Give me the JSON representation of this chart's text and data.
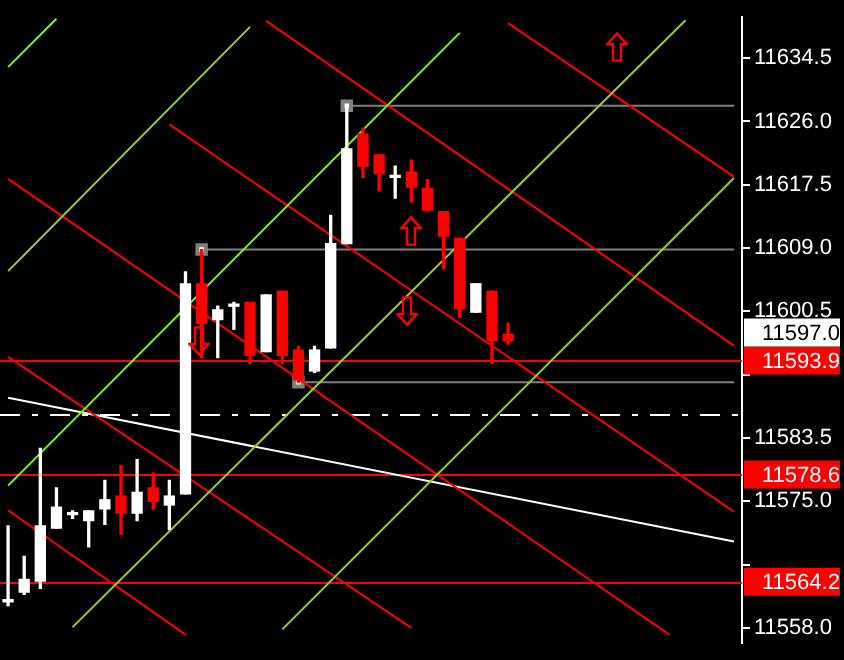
{
  "chart_data": {
    "type": "candlestick",
    "categories": [
      null,
      null,
      null,
      null,
      null,
      null,
      null,
      null,
      null,
      null,
      null,
      null,
      null,
      null,
      null,
      null,
      null,
      null,
      null,
      null,
      null,
      null,
      null,
      null,
      null,
      null,
      null,
      null,
      null,
      null,
      null,
      null,
      null,
      null,
      null,
      null,
      null,
      null,
      null,
      null,
      null,
      null,
      null,
      null,
      null,
      null
    ],
    "ohlc": [
      [
        11561.5,
        11571.7,
        11561.0,
        11561.8
      ],
      [
        11562.8,
        11567.6,
        11562.5,
        11564.5
      ],
      [
        11564.3,
        11582.1,
        11563.3,
        11571.7
      ],
      [
        11571.4,
        11576.8,
        11571.4,
        11574.2
      ],
      [
        11573.2,
        11573.7,
        11572.7,
        11573.4
      ],
      [
        11572.4,
        11573.7,
        11568.9,
        11573.7
      ],
      [
        11574.0,
        11577.8,
        11571.9,
        11575.2
      ],
      [
        11575.7,
        11579.8,
        11570.6,
        11573.4
      ],
      [
        11573.4,
        11580.6,
        11572.4,
        11576.2
      ],
      [
        11576.8,
        11578.8,
        11574.0,
        11575.0
      ],
      [
        11574.5,
        11577.8,
        11571.2,
        11575.7
      ],
      [
        11576.0,
        11605.8,
        11576.0,
        11604.2
      ],
      [
        11604.2,
        11608.8,
        11594.3,
        11598.9
      ],
      [
        11599.4,
        11601.2,
        11594.3,
        11600.7
      ],
      [
        11601.2,
        11601.7,
        11598.1,
        11601.2
      ],
      [
        11601.7,
        11601.7,
        11593.5,
        11594.6
      ],
      [
        11595.1,
        11602.7,
        11595.1,
        11602.7
      ],
      [
        11603.2,
        11603.2,
        11593.5,
        11594.6
      ],
      [
        11595.3,
        11595.8,
        11591.0,
        11591.3
      ],
      [
        11592.5,
        11595.8,
        11592.3,
        11595.3
      ],
      [
        11595.6,
        11613.4,
        11595.6,
        11609.6
      ],
      [
        11609.6,
        11628.1,
        11609.6,
        11622.3
      ],
      [
        11624.3,
        11625.1,
        11618.5,
        11620.0
      ],
      [
        11621.5,
        11621.5,
        11616.7,
        11619.0
      ],
      [
        11618.5,
        11620.0,
        11615.7,
        11618.5
      ],
      [
        11619.2,
        11620.8,
        11615.2,
        11617.2
      ],
      [
        11617.0,
        11618.2,
        11614.1,
        11614.1
      ],
      [
        11613.9,
        11613.9,
        11606.3,
        11610.6
      ],
      [
        11610.3,
        11610.3,
        11599.7,
        11600.9
      ],
      [
        11600.4,
        11604.2,
        11600.4,
        11604.2
      ],
      [
        11603.2,
        11603.2,
        11593.5,
        11596.6
      ],
      [
        11597.4,
        11598.9,
        11596.1,
        11596.6
      ],
      null,
      null,
      null,
      null,
      null,
      null,
      null,
      null,
      null,
      null,
      null,
      null,
      null,
      null
    ],
    "colors": [
      "#ffffff",
      "#ffffff",
      "#ffffff",
      "#ffffff",
      "#ffffff",
      "#ffffff",
      "#ffffff",
      "#ff0000",
      "#ffffff",
      "#ff0000",
      "#ffffff",
      "#ffffff",
      "#ff0000",
      "#ffffff",
      "#ffffff",
      "#ff0000",
      "#ffffff",
      "#ff0000",
      "#ff0000",
      "#ffffff",
      "#ffffff",
      "#ffffff",
      "#ff0000",
      "#ff0000",
      "#ffffff",
      "#ff0000",
      "#ff0000",
      "#ff0000",
      "#ff0000",
      "#ffffff",
      "#ff0000",
      "#ff0000",
      null,
      null,
      null,
      null,
      null,
      null,
      null,
      null,
      null,
      null,
      null,
      null,
      null,
      null
    ],
    "series": [
      {
        "type": "line",
        "color": "#7cfc00",
        "marker": "none",
        "values": [
          11633.3,
          null,
          null,
          11639.8,
          null,
          null,
          null,
          null,
          null,
          null,
          null,
          null,
          null,
          null,
          null,
          null,
          null,
          null,
          null,
          null,
          null,
          null,
          null,
          null,
          null,
          null,
          null,
          null,
          null,
          null,
          null,
          null,
          null,
          null,
          null,
          null,
          null,
          null,
          null,
          null,
          null,
          null,
          null,
          null,
          null,
          null
        ]
      },
      {
        "type": "line",
        "color": "#7cfc00",
        "marker": "none",
        "values": [
          11577.1,
          null,
          null,
          null,
          null,
          null,
          null,
          null,
          null,
          null,
          null,
          null,
          null,
          null,
          null,
          null,
          null,
          null,
          null,
          null,
          null,
          null,
          null,
          null,
          null,
          null,
          null,
          null,
          11637.9,
          null,
          null,
          null,
          null,
          null,
          null,
          null,
          null,
          null,
          null,
          null,
          null,
          null,
          null,
          null,
          null,
          null
        ]
      },
      {
        "type": "line",
        "color": "#9acd32",
        "marker": "none",
        "values": [
          11605.9,
          null,
          null,
          null,
          null,
          null,
          null,
          null,
          null,
          null,
          null,
          null,
          null,
          null,
          null,
          11638.7,
          null,
          null,
          null,
          null,
          null,
          null,
          null,
          null,
          null,
          null,
          null,
          null,
          null,
          null,
          null,
          null,
          null,
          null,
          null,
          null,
          null,
          null,
          null,
          null,
          null,
          null,
          null,
          null,
          null,
          null
        ]
      },
      {
        "type": "line",
        "color": "#9acd32",
        "marker": "none",
        "values": [
          null,
          null,
          null,
          null,
          11558.1,
          null,
          null,
          null,
          null,
          null,
          null,
          null,
          null,
          null,
          null,
          null,
          null,
          null,
          null,
          null,
          null,
          null,
          null,
          null,
          null,
          null,
          null,
          null,
          null,
          null,
          null,
          null,
          null,
          null,
          null,
          null,
          null,
          null,
          null,
          null,
          null,
          null,
          11639.6,
          null,
          null,
          null
        ]
      },
      {
        "type": "line",
        "color": "#9acd32",
        "marker": "none",
        "values": [
          null,
          null,
          null,
          null,
          null,
          null,
          null,
          null,
          null,
          null,
          null,
          null,
          null,
          null,
          null,
          null,
          null,
          11557.8,
          null,
          null,
          null,
          null,
          null,
          null,
          null,
          null,
          null,
          null,
          null,
          null,
          null,
          null,
          null,
          null,
          null,
          null,
          null,
          null,
          null,
          null,
          null,
          null,
          null,
          null,
          null,
          11618.4
        ]
      },
      {
        "type": "line",
        "color": "#ff0000",
        "marker": "none",
        "values": [
          null,
          null,
          null,
          null,
          null,
          null,
          null,
          null,
          null,
          null,
          null,
          null,
          null,
          null,
          null,
          null,
          null,
          null,
          null,
          null,
          null,
          null,
          null,
          null,
          null,
          null,
          null,
          null,
          null,
          null,
          null,
          11639.2,
          null,
          null,
          null,
          null,
          null,
          null,
          null,
          null,
          null,
          null,
          null,
          null,
          null,
          11618.6
        ]
      },
      {
        "type": "line",
        "color": "#ff0000",
        "marker": "none",
        "values": [
          null,
          null,
          null,
          null,
          null,
          null,
          null,
          null,
          null,
          null,
          null,
          null,
          null,
          null,
          null,
          null,
          11639.5,
          null,
          null,
          null,
          null,
          null,
          null,
          null,
          null,
          null,
          null,
          null,
          null,
          null,
          null,
          null,
          null,
          null,
          null,
          null,
          null,
          null,
          null,
          null,
          null,
          null,
          null,
          null,
          null,
          11595.9
        ]
      },
      {
        "type": "line",
        "color": "#ff0000",
        "marker": "none",
        "values": [
          null,
          null,
          null,
          null,
          null,
          null,
          null,
          null,
          null,
          null,
          11625.6,
          null,
          null,
          null,
          null,
          null,
          null,
          null,
          null,
          null,
          null,
          null,
          null,
          null,
          null,
          null,
          null,
          null,
          null,
          null,
          null,
          null,
          null,
          null,
          null,
          null,
          null,
          null,
          null,
          null,
          null,
          null,
          null,
          null,
          null,
          11573.6
        ]
      },
      {
        "type": "line",
        "color": "#ff0000",
        "marker": "none",
        "values": [
          11618.3,
          null,
          null,
          null,
          null,
          null,
          null,
          null,
          null,
          null,
          null,
          null,
          null,
          null,
          null,
          null,
          null,
          null,
          null,
          null,
          null,
          null,
          null,
          null,
          null,
          null,
          null,
          null,
          null,
          null,
          null,
          null,
          null,
          null,
          null,
          null,
          null,
          null,
          null,
          null,
          null,
          11557.1,
          null,
          null,
          null,
          null
        ]
      },
      {
        "type": "line",
        "color": "#ff0000",
        "marker": "none",
        "values": [
          11594.4,
          null,
          null,
          null,
          null,
          null,
          null,
          null,
          null,
          null,
          null,
          null,
          null,
          null,
          null,
          null,
          null,
          null,
          null,
          null,
          null,
          null,
          null,
          null,
          null,
          11558.0,
          null,
          null,
          null,
          null,
          null,
          null,
          null,
          null,
          null,
          null,
          null,
          null,
          null,
          null,
          null,
          null,
          null,
          null,
          null,
          null
        ]
      },
      {
        "type": "line",
        "color": "#ff0000",
        "marker": "none",
        "values": [
          11573.8,
          null,
          null,
          null,
          null,
          null,
          null,
          null,
          null,
          null,
          null,
          11557.1,
          null,
          null,
          null,
          null,
          null,
          null,
          null,
          null,
          null,
          null,
          null,
          null,
          null,
          null,
          null,
          null,
          null,
          null,
          null,
          null,
          null,
          null,
          null,
          null,
          null,
          null,
          null,
          null,
          null,
          null,
          null,
          null,
          null,
          null
        ]
      },
      {
        "type": "line",
        "color": "#ffffff",
        "marker": "none",
        "values": [
          11588.9,
          null,
          null,
          null,
          null,
          null,
          null,
          null,
          null,
          null,
          null,
          null,
          null,
          null,
          null,
          null,
          null,
          null,
          null,
          null,
          null,
          null,
          null,
          null,
          null,
          null,
          null,
          null,
          null,
          null,
          null,
          null,
          null,
          null,
          null,
          null,
          null,
          null,
          null,
          null,
          null,
          null,
          null,
          null,
          null,
          11569.6
        ]
      },
      {
        "type": "line",
        "color": "#808080",
        "marker": "square",
        "values": [
          null,
          null,
          null,
          null,
          null,
          null,
          null,
          null,
          null,
          null,
          null,
          null,
          null,
          null,
          null,
          null,
          null,
          null,
          null,
          null,
          null,
          11628.1,
          null,
          null,
          null,
          null,
          null,
          null,
          null,
          null,
          null,
          null,
          null,
          null,
          null,
          null,
          null,
          null,
          null,
          null,
          null,
          null,
          null,
          null,
          null,
          11628.1
        ]
      },
      {
        "type": "line",
        "color": "#808080",
        "marker": "square",
        "values": [
          null,
          null,
          null,
          null,
          null,
          null,
          null,
          null,
          null,
          null,
          null,
          null,
          11608.8,
          null,
          null,
          null,
          null,
          null,
          null,
          null,
          null,
          null,
          null,
          null,
          null,
          null,
          null,
          null,
          null,
          null,
          null,
          null,
          null,
          null,
          null,
          null,
          null,
          null,
          null,
          null,
          null,
          null,
          null,
          null,
          null,
          11608.8
        ]
      },
      {
        "type": "line",
        "color": "#808080",
        "marker": "square",
        "values": [
          null,
          null,
          null,
          null,
          null,
          null,
          null,
          null,
          null,
          null,
          null,
          null,
          null,
          null,
          null,
          null,
          null,
          null,
          11591.0,
          null,
          null,
          null,
          null,
          null,
          null,
          null,
          null,
          null,
          null,
          null,
          null,
          null,
          null,
          null,
          null,
          null,
          null,
          null,
          null,
          null,
          null,
          null,
          null,
          null,
          null,
          11591.0
        ]
      }
    ],
    "ylim": [
      11556,
      11640
    ],
    "yticks": [
      {
        "value": 11558,
        "label": "11558.0"
      },
      {
        "value": 11566.5,
        "label": null
      },
      {
        "value": 11575,
        "label": "11575.0"
      },
      {
        "value": 11583.5,
        "label": "11583.5"
      },
      {
        "value": 11592,
        "label": null
      },
      {
        "value": 11600.5,
        "label": "11600.5"
      },
      {
        "value": 11609,
        "label": "11609.0"
      },
      {
        "value": 11617.5,
        "label": "11617.5"
      },
      {
        "value": 11626,
        "label": "11626.0"
      },
      {
        "value": 11634.5,
        "label": "11634.5"
      }
    ],
    "tick_labels": "y",
    "grid": false,
    "legend": false,
    "ref_lines": [
      {
        "axis": "y",
        "value": 11593.9,
        "label": "11593.9",
        "color": "#ff0000"
      },
      {
        "axis": "y",
        "value": 11578.6,
        "label": "11578.6",
        "color": "#ff0000"
      },
      {
        "axis": "y",
        "value": 11564.2,
        "label": "11564.2",
        "color": "#ff0000"
      },
      {
        "axis": "y",
        "value": 11586.7,
        "color": "#ffffff",
        "line_style": "dashed"
      }
    ],
    "annotations": [
      "11597.0"
    ]
  }
}
